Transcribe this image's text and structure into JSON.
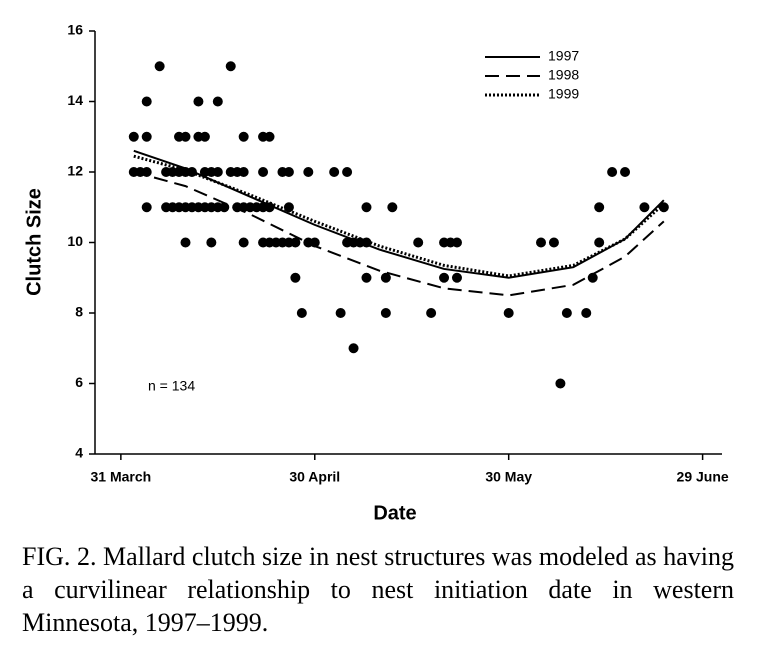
{
  "chart_data": {
    "type": "scatter",
    "x_label": "Date",
    "y_label": "Clutch Size",
    "annotation": "n = 134",
    "xlim": [
      -4,
      93
    ],
    "ylim": [
      4,
      16
    ],
    "xticks": [
      {
        "value": 0,
        "label": "31 March"
      },
      {
        "value": 30,
        "label": "30 April"
      },
      {
        "value": 60,
        "label": "30 May"
      },
      {
        "value": 90,
        "label": "29 June"
      }
    ],
    "yticks": [
      4,
      6,
      8,
      10,
      12,
      14,
      16
    ],
    "points": {
      "color": "#000000",
      "x": [
        6,
        17,
        4,
        12,
        15,
        2,
        4,
        9,
        10,
        12,
        13,
        19,
        22,
        23,
        2,
        3,
        4,
        7,
        8,
        9,
        10,
        11,
        13,
        14,
        15,
        17,
        18,
        19,
        22,
        25,
        26,
        29,
        33,
        35,
        4,
        7,
        8,
        9,
        10,
        11,
        12,
        13,
        14,
        15,
        16,
        18,
        19,
        20,
        21,
        22,
        23,
        26,
        38,
        42,
        10,
        14,
        19,
        22,
        23,
        24,
        25,
        26,
        27,
        29,
        30,
        35,
        36,
        37,
        38,
        46,
        50,
        51,
        52,
        65,
        67,
        74,
        27,
        38,
        41,
        50,
        52,
        73,
        28,
        34,
        41,
        48,
        60,
        69,
        72,
        36,
        68,
        74,
        76,
        78,
        81,
        84
      ],
      "y": [
        15,
        15,
        14,
        14,
        14,
        13,
        13,
        13,
        13,
        13,
        13,
        13,
        13,
        13,
        12,
        12,
        12,
        12,
        12,
        12,
        12,
        12,
        12,
        12,
        12,
        12,
        12,
        12,
        12,
        12,
        12,
        12,
        12,
        12,
        11,
        11,
        11,
        11,
        11,
        11,
        11,
        11,
        11,
        11,
        11,
        11,
        11,
        11,
        11,
        11,
        11,
        11,
        11,
        11,
        10,
        10,
        10,
        10,
        10,
        10,
        10,
        10,
        10,
        10,
        10,
        10,
        10,
        10,
        10,
        10,
        10,
        10,
        10,
        10,
        10,
        10,
        9,
        9,
        9,
        9,
        9,
        9,
        8,
        8,
        8,
        8,
        8,
        8,
        8,
        7,
        6,
        11,
        12,
        12,
        11,
        11
      ]
    },
    "series": [
      {
        "name": "1997",
        "color": "#000000",
        "dash": "solid",
        "x": [
          2,
          10,
          20,
          30,
          40,
          50,
          60,
          70,
          78,
          84
        ],
        "values": [
          12.6,
          12.1,
          11.3,
          10.5,
          9.8,
          9.25,
          9.0,
          9.3,
          10.1,
          11.2
        ]
      },
      {
        "name": "1998",
        "color": "#000000",
        "dash": "dashed",
        "x": [
          2,
          10,
          20,
          30,
          40,
          50,
          60,
          70,
          78,
          84
        ],
        "values": [
          12.0,
          11.6,
          10.8,
          9.9,
          9.2,
          8.7,
          8.5,
          8.8,
          9.6,
          10.6
        ]
      },
      {
        "name": "1999",
        "color": "#000000",
        "dash": "dotted",
        "x": [
          2,
          10,
          20,
          30,
          40,
          50,
          60,
          70,
          78,
          84
        ],
        "values": [
          12.45,
          12.05,
          11.35,
          10.6,
          9.9,
          9.35,
          9.05,
          9.35,
          10.1,
          11.1
        ]
      }
    ],
    "caption": "FIG. 2.   Mallard clutch size in nest structures was modeled as having a curvilinear relationship to nest initiation date in western Minnesota, 1997–1999."
  }
}
